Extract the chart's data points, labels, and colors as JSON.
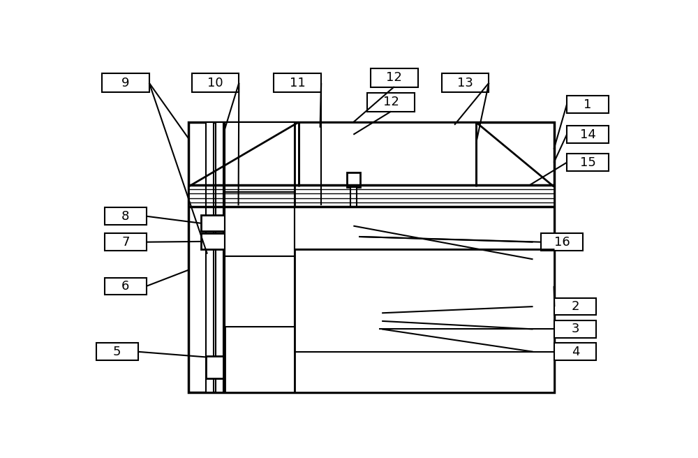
{
  "bg_color": "#ffffff",
  "lc": "#000000",
  "lw": 2.0,
  "lw_thin": 1.5,
  "fs": 13
}
